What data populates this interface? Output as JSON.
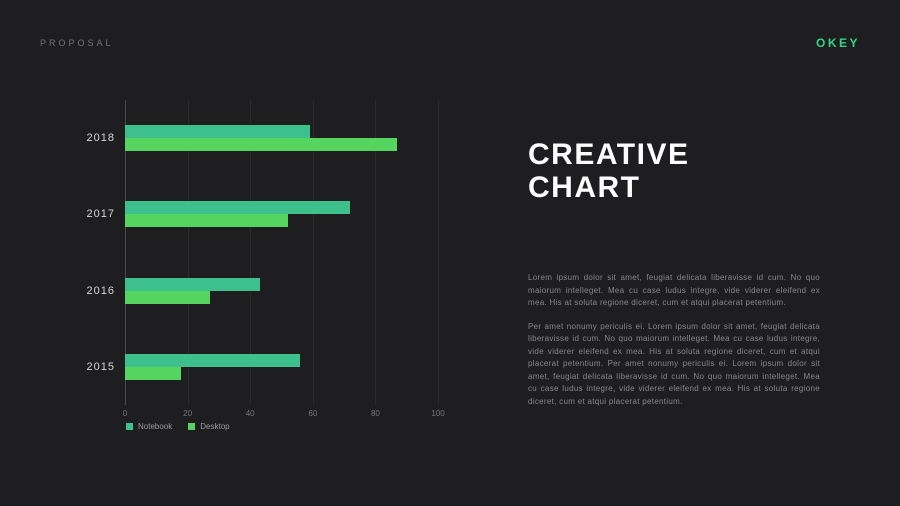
{
  "header": {
    "proposal": "PROPOSAL",
    "logo": "OKEY"
  },
  "title": {
    "line1": "CREATIVE",
    "line2": "CHART"
  },
  "paragraphs": {
    "p1": "Lorem ipsum dolor sit amet, feugiat delicata liberavisse id cum. No quo maiorum intelleget. Mea cu case ludus integre, vide viderer eleifend ex mea. His at soluta regione diceret, cum et atqui placerat petentium.",
    "p2": "Per amet nonumy periculis ei. Lorem ipsum dolor sit amet, feugiat delicata liberavisse id cum. No quo maiorum intelleget. Mea cu case ludus integre, vide viderer eleifend ex mea. His at soluta regione diceret, cum et atqui placerat petentium. Per amet nonumy periculis ei. Lorem ipsum dolor sit amet, feugiat delicata liberavisse id cum. No quo maiorum intelleget. Mea cu case ludus integre, vide viderer eleifend ex mea. His at soluta regione diceret, cum et atqui placerat petentium."
  },
  "chart_data": {
    "type": "bar",
    "orientation": "horizontal",
    "categories": [
      "2018",
      "2017",
      "2016",
      "2015"
    ],
    "series": [
      {
        "name": "Notebook",
        "color": "#3ec08d",
        "values": [
          59,
          72,
          43,
          56
        ]
      },
      {
        "name": "Desktop",
        "color": "#55d45f",
        "values": [
          87,
          52,
          27,
          18
        ]
      }
    ],
    "xlim": [
      0,
      100
    ],
    "xticks": [
      "0",
      "20",
      "40",
      "60",
      "80",
      "100"
    ],
    "grid": true,
    "legend_position": "bottom-left"
  },
  "colors": {
    "background": "#1e1e21",
    "accent_green": "#31d77f",
    "text_muted": "#87878c"
  }
}
